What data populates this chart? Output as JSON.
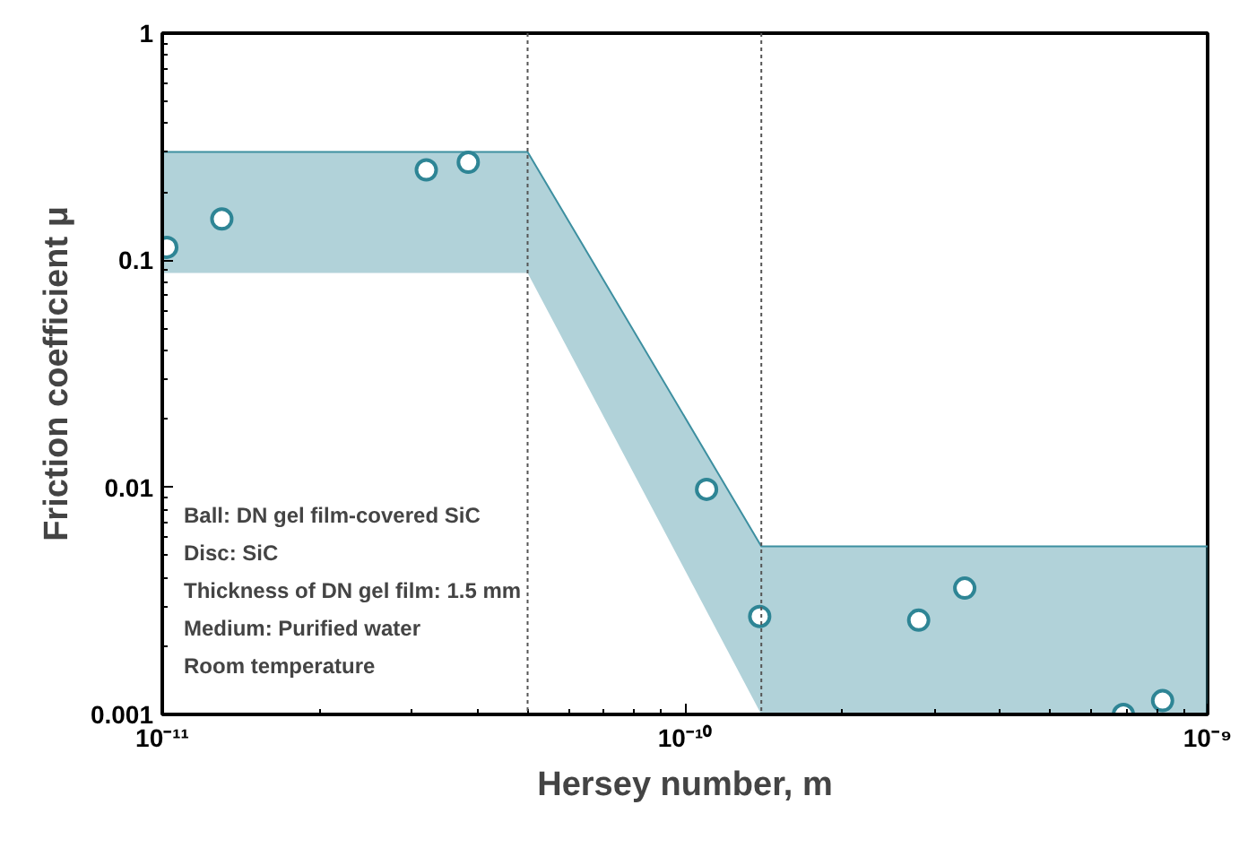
{
  "chart_data": {
    "type": "scatter",
    "xlabel": "Hersey number, m",
    "ylabel": "Friction coefficient μ",
    "log": "xy",
    "grid": false,
    "xlim": [
      1e-11,
      1e-09
    ],
    "ylim": [
      0.001,
      1
    ],
    "xticks": [
      {
        "value": 1e-11,
        "label": "10⁻¹¹"
      },
      {
        "value": 1e-10,
        "label": "10⁻¹⁰"
      },
      {
        "value": 1e-09,
        "label": "10⁻⁹"
      }
    ],
    "yticks": [
      {
        "value": 0.001,
        "label": "0.001"
      },
      {
        "value": 0.01,
        "label": "0.01"
      },
      {
        "value": 0.1,
        "label": "0.1"
      },
      {
        "value": 1,
        "label": "1"
      }
    ],
    "series": [
      {
        "type": "line",
        "color": "#3d8fa0",
        "x": [
          1e-11,
          5e-11,
          1.4e-10,
          1e-09
        ],
        "values": [
          0.3,
          0.3,
          0.0055,
          0.0055
        ],
        "lower": [
          0.088,
          0.088,
          0.001,
          0.001
        ],
        "upper": [
          0.3,
          0.3,
          0.0055,
          0.0055
        ]
      },
      {
        "marker": "circle",
        "color": "#2e8595",
        "x": [
          1.02e-11,
          1.3e-11,
          3.2e-11,
          3.85e-11,
          1.1e-10,
          1.39e-10,
          2.8e-10,
          3.43e-10,
          6.9e-10,
          8.2e-10
        ],
        "values": [
          0.114,
          0.152,
          0.25,
          0.27,
          0.0098,
          0.0027,
          0.0026,
          0.0036,
          0.001,
          0.00115
        ]
      }
    ],
    "ref_lines": [
      {
        "axis": "x",
        "value": 5e-11,
        "line_style": "dotted"
      },
      {
        "axis": "x",
        "value": 1.4e-10,
        "line_style": "dotted"
      }
    ],
    "annotations": [
      "Ball: DN gel film-covered SiC",
      "Disc: SiC",
      "Thickness of DN gel film: 1.5 mm",
      "Medium: Purified water",
      "Room temperature"
    ]
  }
}
